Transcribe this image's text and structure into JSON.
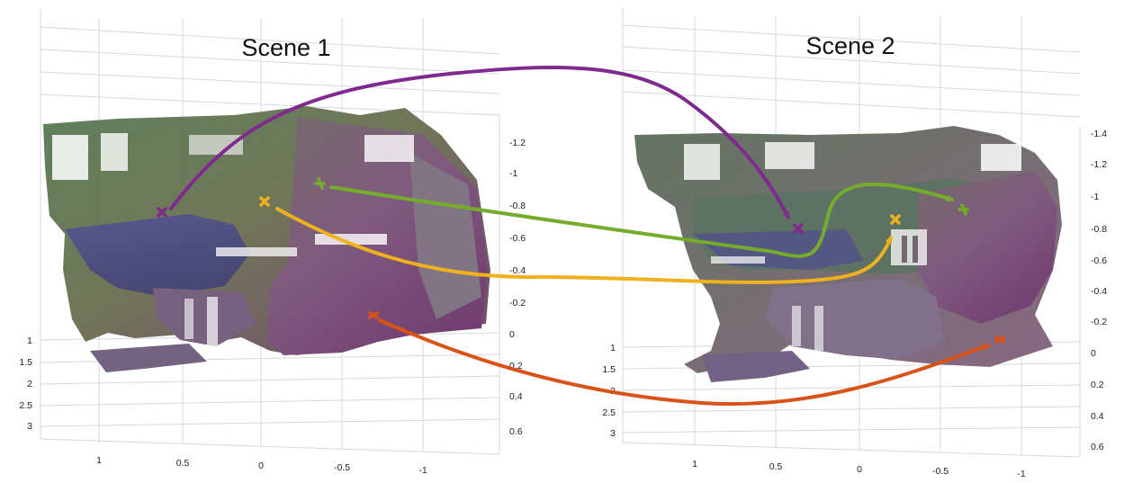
{
  "scenes": [
    {
      "title": "Scene 1",
      "left_axis_ticks": [
        "1",
        "1.5",
        "2",
        "2.5",
        "3"
      ],
      "bottom_axis_ticks": [
        "1",
        "0.5",
        "0",
        "-0.5",
        "-1"
      ],
      "right_axis_ticks": [
        "-1.2",
        "-1",
        "-0.8",
        "-0.6",
        "-0.4",
        "-0.2",
        "0",
        "0.2",
        "0.4",
        "0.6"
      ]
    },
    {
      "title": "Scene 2",
      "left_axis_ticks": [
        "1",
        "1.5",
        "2",
        "2.5",
        "3"
      ],
      "bottom_axis_ticks": [
        "1",
        "0.5",
        "0",
        "-0.5",
        "-1"
      ],
      "right_axis_ticks": [
        "-1.4",
        "-1.2",
        "-1",
        "-0.8",
        "-0.6",
        "-0.4",
        "-0.2",
        "0",
        "0.2",
        "0.4",
        "0.6"
      ]
    }
  ],
  "correspondence_colors": {
    "purple": "#7e2a8e",
    "green": "#76ac2d",
    "yellow": "#efb11e",
    "orange": "#d95319"
  }
}
